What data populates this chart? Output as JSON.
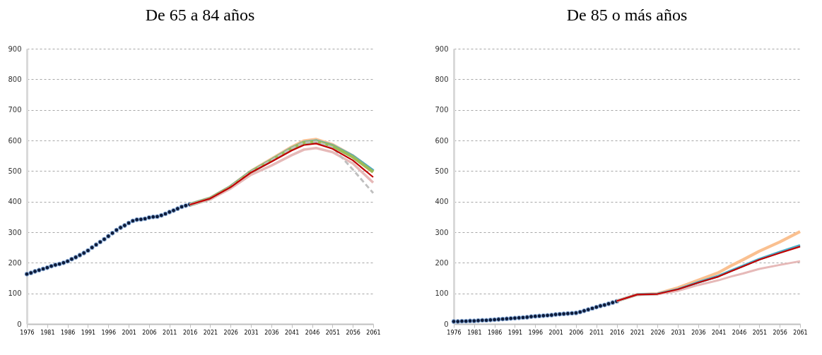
{
  "chart_data": [
    {
      "type": "line",
      "title": "De 65 a 84 años",
      "xlim": [
        1976,
        2061
      ],
      "xticks": [
        1976,
        1981,
        1986,
        1991,
        1996,
        2001,
        2006,
        2011,
        2016,
        2021,
        2026,
        2031,
        2036,
        2041,
        2046,
        2051,
        2056,
        2061
      ],
      "ylim": [
        0,
        900
      ],
      "yticks": [
        0,
        100,
        200,
        300,
        400,
        500,
        600,
        700,
        800,
        900
      ],
      "grid": "y",
      "series": [
        {
          "type": "scatter",
          "marker": "circle",
          "color": "#0d1b3a",
          "x": [
            1976,
            1977,
            1978,
            1979,
            1980,
            1981,
            1982,
            1983,
            1984,
            1985,
            1986,
            1987,
            1988,
            1989,
            1990,
            1991,
            1992,
            1993,
            1994,
            1995,
            1996,
            1997,
            1998,
            1999,
            2000,
            2001,
            2002,
            2003,
            2004,
            2005,
            2006,
            2007,
            2008,
            2009,
            2010,
            2011,
            2012,
            2013,
            2014,
            2015,
            2016
          ],
          "values": [
            163,
            167,
            172,
            176,
            180,
            184,
            189,
            193,
            196,
            200,
            205,
            212,
            218,
            225,
            232,
            240,
            250,
            259,
            268,
            277,
            287,
            297,
            307,
            315,
            322,
            330,
            337,
            341,
            342,
            344,
            348,
            350,
            351,
            355,
            360,
            366,
            371,
            377,
            383,
            387,
            391
          ]
        },
        {
          "color": "#fac090",
          "x": [
            2016,
            2021,
            2026,
            2031,
            2036,
            2041,
            2044,
            2047,
            2051,
            2056,
            2061
          ],
          "values": [
            390,
            410,
            448,
            498,
            537,
            577,
            597,
            602,
            585,
            548,
            498
          ]
        },
        {
          "color": "#4bacc6",
          "x": [
            2016,
            2021,
            2026,
            2031,
            2036,
            2041,
            2044,
            2047,
            2051,
            2056,
            2061
          ],
          "values": [
            390,
            410,
            448,
            497,
            535,
            574,
            593,
            598,
            583,
            548,
            500
          ]
        },
        {
          "color": "#9bbb59",
          "x": [
            2016,
            2021,
            2026,
            2031,
            2036,
            2041,
            2044,
            2047,
            2051,
            2056,
            2061
          ],
          "values": [
            390,
            410,
            448,
            497,
            535,
            574,
            593,
            597,
            582,
            546,
            497
          ]
        },
        {
          "color": "#e6b9b8",
          "x": [
            2016,
            2021,
            2026,
            2031,
            2036,
            2041,
            2044,
            2047,
            2051,
            2056,
            2061
          ],
          "values": [
            390,
            408,
            443,
            488,
            518,
            552,
            570,
            575,
            562,
            525,
            462
          ]
        },
        {
          "color": "#bfbfbf",
          "line_style": "dashed",
          "x": [
            2016,
            2021,
            2026,
            2031,
            2036,
            2041,
            2044,
            2047,
            2051,
            2056,
            2061
          ],
          "values": [
            390,
            410,
            448,
            497,
            535,
            574,
            593,
            596,
            578,
            505,
            428
          ]
        },
        {
          "color": "#c00000",
          "x": [
            2016,
            2021,
            2026,
            2031,
            2036,
            2041,
            2044,
            2047,
            2051,
            2056,
            2061
          ],
          "values": [
            390,
            410,
            447,
            495,
            530,
            567,
            585,
            590,
            573,
            535,
            480
          ]
        }
      ]
    },
    {
      "type": "line",
      "title": "De 85 o más años",
      "xlim": [
        1976,
        2061
      ],
      "xticks": [
        1976,
        1981,
        1986,
        1991,
        1996,
        2001,
        2006,
        2011,
        2016,
        2021,
        2026,
        2031,
        2036,
        2041,
        2046,
        2051,
        2056,
        2061
      ],
      "ylim": [
        0,
        900
      ],
      "yticks": [
        0,
        100,
        200,
        300,
        400,
        500,
        600,
        700,
        800,
        900
      ],
      "grid": "y",
      "series": [
        {
          "type": "scatter",
          "marker": "circle",
          "color": "#0d1b3a",
          "x": [
            1976,
            1977,
            1978,
            1979,
            1980,
            1981,
            1982,
            1983,
            1984,
            1985,
            1986,
            1987,
            1988,
            1989,
            1990,
            1991,
            1992,
            1993,
            1994,
            1995,
            1996,
            1997,
            1998,
            1999,
            2000,
            2001,
            2002,
            2003,
            2004,
            2005,
            2006,
            2007,
            2008,
            2009,
            2010,
            2011,
            2012,
            2013,
            2014,
            2015,
            2016
          ],
          "values": [
            8,
            8,
            9,
            9,
            10,
            10,
            11,
            12,
            12,
            13,
            14,
            15,
            16,
            17,
            18,
            19,
            20,
            21,
            22,
            24,
            25,
            26,
            27,
            28,
            29,
            31,
            32,
            33,
            34,
            35,
            36,
            39,
            43,
            47,
            51,
            55,
            59,
            62,
            66,
            70,
            74
          ]
        },
        {
          "color": "#fac090",
          "x": [
            2016,
            2021,
            2026,
            2031,
            2036,
            2041,
            2044,
            2047,
            2051,
            2056,
            2061
          ],
          "values": [
            75,
            96,
            99,
            118,
            143,
            168,
            190,
            210,
            238,
            268,
            302
          ]
        },
        {
          "color": "#4bacc6",
          "x": [
            2016,
            2021,
            2026,
            2031,
            2036,
            2041,
            2044,
            2047,
            2051,
            2056,
            2061
          ],
          "values": [
            75,
            96,
            98,
            113,
            136,
            157,
            174,
            190,
            212,
            235,
            257
          ]
        },
        {
          "color": "#e6b9b8",
          "x": [
            2016,
            2021,
            2026,
            2031,
            2036,
            2041,
            2044,
            2047,
            2051,
            2056,
            2061
          ],
          "values": [
            75,
            96,
            97,
            108,
            127,
            143,
            155,
            165,
            180,
            193,
            205
          ]
        },
        {
          "color": "#c00000",
          "x": [
            2016,
            2021,
            2026,
            2031,
            2036,
            2041,
            2044,
            2047,
            2051,
            2056,
            2061
          ],
          "values": [
            75,
            96,
            98,
            113,
            135,
            155,
            172,
            188,
            210,
            232,
            253
          ]
        }
      ]
    }
  ]
}
